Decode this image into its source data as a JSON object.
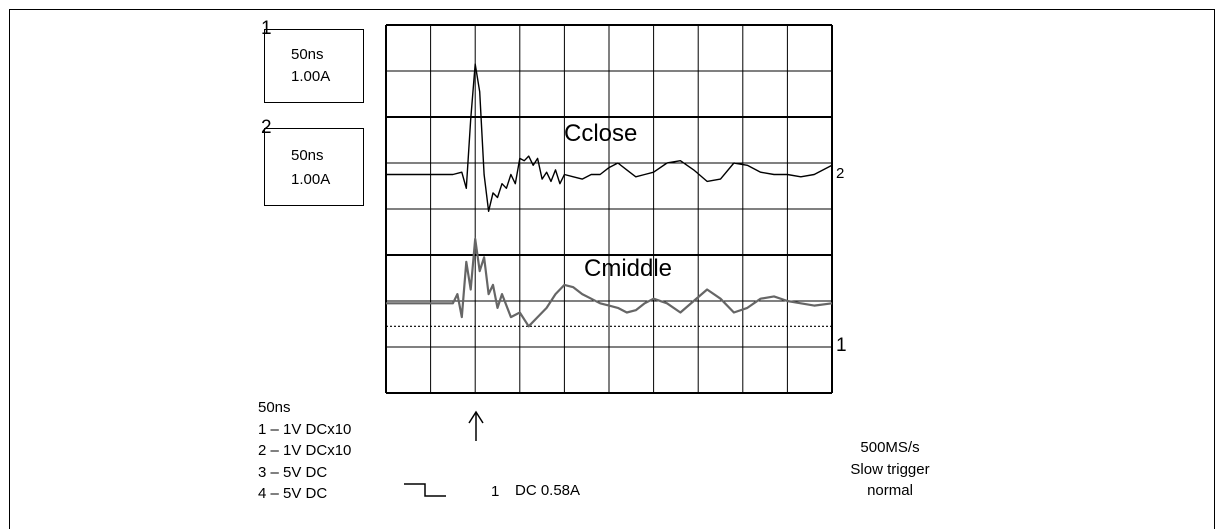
{
  "channel_boxes": [
    {
      "number": "1",
      "timebase": "50ns",
      "scale": "1.00A"
    },
    {
      "number": "2",
      "timebase": "50ns",
      "scale": "1.00A"
    }
  ],
  "trace_labels": {
    "top": "Cclose",
    "bottom": "Cmiddle"
  },
  "marker_labels": {
    "trace_top": "2",
    "trace_bottom": "1"
  },
  "settings": {
    "timebase": "50ns",
    "lines": [
      "1 – 1V  DCx10",
      "2 – 1V  DCx10",
      "3 – 5V  DC",
      "4 – 5V  DC"
    ]
  },
  "trigger": {
    "channel": "1",
    "text": "DC 0.58A"
  },
  "acquisition": {
    "rate": "500MS/s",
    "trigger_speed": "Slow trigger",
    "mode": "normal"
  },
  "chart_data": {
    "type": "line",
    "grid": {
      "divisions_x": 10,
      "divisions_y": 8
    },
    "x_unit_per_div": "50ns",
    "y_unit_per_div": "1.00A",
    "series": [
      {
        "name": "Cclose",
        "x": [
          0,
          0.5,
          1,
          1.5,
          1.7,
          1.8,
          1.9,
          2.0,
          2.1,
          2.2,
          2.3,
          2.4,
          2.5,
          2.6,
          2.7,
          2.8,
          2.9,
          3.0,
          3.1,
          3.2,
          3.3,
          3.4,
          3.5,
          3.6,
          3.7,
          3.8,
          3.9,
          4.0,
          4.2,
          4.4,
          4.6,
          4.8,
          5.0,
          5.2,
          5.4,
          5.6,
          5.8,
          6.0,
          6.3,
          6.6,
          6.9,
          7.2,
          7.5,
          7.8,
          8.1,
          8.4,
          8.7,
          9.0,
          9.3,
          9.6,
          10
        ],
        "y": [
          0,
          0,
          0,
          0,
          0.05,
          -0.3,
          1.2,
          2.4,
          1.8,
          0,
          -0.8,
          -0.4,
          -0.5,
          -0.2,
          -0.3,
          0,
          -0.2,
          0.35,
          0.3,
          0.4,
          0.2,
          0.35,
          -0.1,
          0.05,
          -0.15,
          0.1,
          -0.2,
          0.0,
          -0.05,
          -0.1,
          0.0,
          0.0,
          0.15,
          0.25,
          0.1,
          -0.05,
          0.0,
          0.05,
          0.25,
          0.3,
          0.1,
          -0.15,
          -0.1,
          0.25,
          0.2,
          0.05,
          0.0,
          0.0,
          -0.05,
          0.0,
          0.2
        ]
      },
      {
        "name": "Cmiddle",
        "x": [
          0,
          0.5,
          1,
          1.3,
          1.5,
          1.6,
          1.7,
          1.8,
          1.9,
          2.0,
          2.1,
          2.2,
          2.3,
          2.4,
          2.5,
          2.6,
          2.8,
          3.0,
          3.2,
          3.4,
          3.6,
          3.8,
          4.0,
          4.2,
          4.4,
          4.6,
          4.8,
          5.0,
          5.2,
          5.4,
          5.6,
          5.8,
          6.0,
          6.3,
          6.6,
          6.9,
          7.2,
          7.5,
          7.8,
          8.1,
          8.4,
          8.7,
          9.0,
          9.3,
          9.6,
          10
        ],
        "y": [
          0,
          0,
          0,
          0,
          0,
          0.2,
          -0.3,
          0.9,
          0.3,
          1.4,
          0.7,
          1.0,
          0.2,
          0.4,
          -0.1,
          0.2,
          -0.3,
          -0.2,
          -0.5,
          -0.3,
          -0.1,
          0.2,
          0.4,
          0.35,
          0.2,
          0.1,
          0.0,
          -0.05,
          -0.1,
          -0.2,
          -0.15,
          0.0,
          0.1,
          0.0,
          -0.2,
          0.05,
          0.3,
          0.1,
          -0.2,
          -0.1,
          0.1,
          0.15,
          0.05,
          0.0,
          -0.05,
          0.0
        ]
      }
    ],
    "trigger_level_line": {
      "channel": "1",
      "level_div": -0.5
    }
  }
}
